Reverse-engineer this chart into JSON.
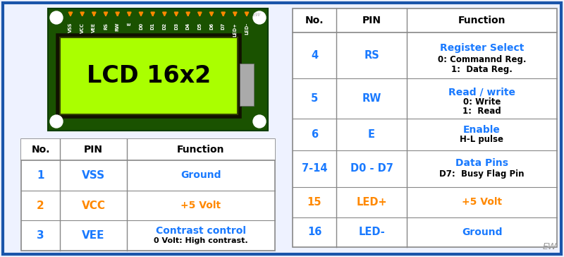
{
  "bg_color": "#eef2ff",
  "border_color": "#1a55aa",
  "lcd_board_color": "#1a5200",
  "lcd_screen_color": "#aaff00",
  "lcd_screen_text": "LCD 16x2",
  "lcd_text_color": "#000000",
  "pin_labels": [
    "VSS",
    "VCC",
    "VEE",
    "RS",
    "RW",
    "E",
    "D0",
    "D1",
    "D2",
    "D3",
    "D4",
    "D5",
    "D6",
    "D7",
    "LED+",
    "LED-"
  ],
  "pin_dot_color": "#ff8800",
  "corner_circle_color": "#ffffff",
  "table1_headers": [
    "No.",
    "PIN",
    "Function"
  ],
  "table1_rows": [
    {
      "no": "1",
      "pin": "VSS",
      "func": "Ground",
      "func2": "",
      "no_color": "#1a7aff",
      "pin_color": "#1a7aff",
      "func_color": "#1a7aff"
    },
    {
      "no": "2",
      "pin": "VCC",
      "func": "+5 Volt",
      "func2": "",
      "no_color": "#ff8800",
      "pin_color": "#ff8800",
      "func_color": "#ff8800"
    },
    {
      "no": "3",
      "pin": "VEE",
      "func": "Contrast control",
      "func2": "0 Volt: High contrast.",
      "no_color": "#1a7aff",
      "pin_color": "#1a7aff",
      "func_color": "#1a7aff"
    }
  ],
  "table2_headers": [
    "No.",
    "PIN",
    "Function"
  ],
  "table2_rows": [
    {
      "no": "4",
      "pin": "RS",
      "func": "Register Select",
      "func2": "0: Commannd Reg.\n1:  Data Reg.",
      "no_color": "#1a7aff",
      "pin_color": "#1a7aff",
      "func_color": "#1a7aff"
    },
    {
      "no": "5",
      "pin": "RW",
      "func": "Read / write",
      "func2": "0: Write\n1:  Read",
      "no_color": "#1a7aff",
      "pin_color": "#1a7aff",
      "func_color": "#1a7aff"
    },
    {
      "no": "6",
      "pin": "E",
      "func": "Enable",
      "func2": "H-L pulse",
      "no_color": "#1a7aff",
      "pin_color": "#1a7aff",
      "func_color": "#1a7aff"
    },
    {
      "no": "7-14",
      "pin": "D0 - D7",
      "func": "Data Pins",
      "func2": "D7:  Busy Flag Pin",
      "no_color": "#1a7aff",
      "pin_color": "#1a7aff",
      "func_color": "#1a7aff"
    },
    {
      "no": "15",
      "pin": "LED+",
      "func": "+5 Volt",
      "func2": "",
      "no_color": "#ff8800",
      "pin_color": "#ff8800",
      "func_color": "#ff8800"
    },
    {
      "no": "16",
      "pin": "LED-",
      "func": "Ground",
      "func2": "",
      "no_color": "#1a7aff",
      "pin_color": "#1a7aff",
      "func_color": "#1a7aff"
    }
  ],
  "ew_text": "EW",
  "ew_color": "#999999",
  "board_ew_color": "#cccccc",
  "connector_color": "#aaaaaa",
  "grid_color": "#888888",
  "header_color": "#000000"
}
